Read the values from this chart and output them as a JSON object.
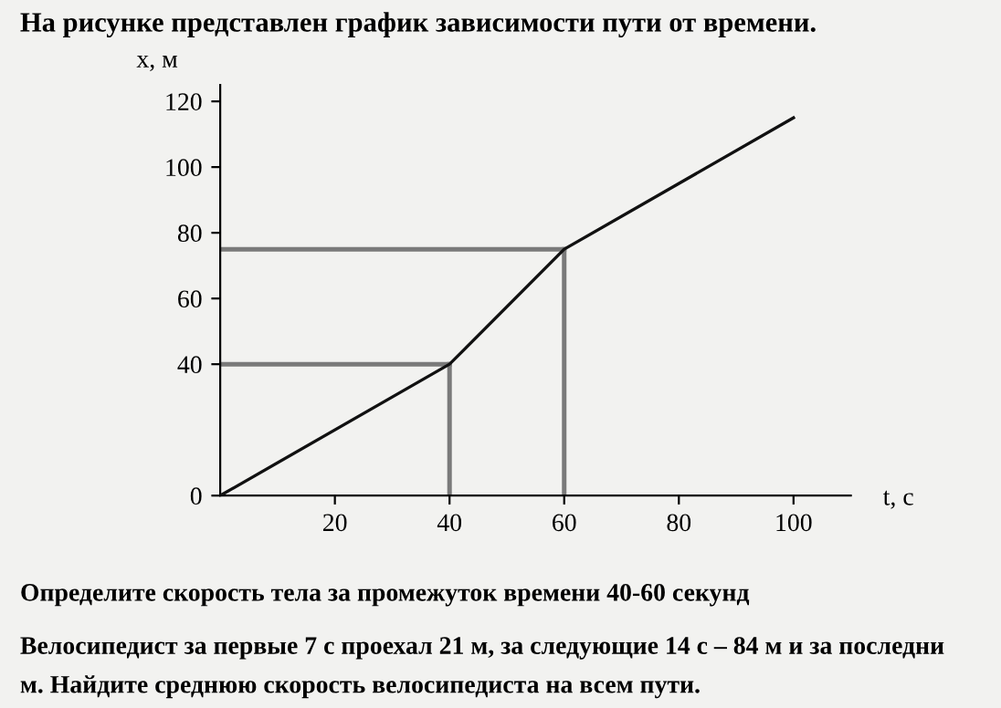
{
  "chart_data": {
    "type": "line",
    "title": "На рисунке представлен график зависимости пути от времени.",
    "xlabel": "t, с",
    "ylabel": "x, м",
    "series": [
      {
        "color": "#111111",
        "x": [
          0,
          40,
          60,
          100
        ],
        "values": [
          0,
          40,
          75,
          115
        ]
      },
      {
        "color": "#7a7a7a",
        "x": [
          0,
          40
        ],
        "values": [
          40,
          40
        ]
      },
      {
        "color": "#7a7a7a",
        "x": [
          40,
          40
        ],
        "values": [
          0,
          40
        ]
      },
      {
        "color": "#7a7a7a",
        "x": [
          0,
          60
        ],
        "values": [
          75,
          75
        ]
      },
      {
        "color": "#7a7a7a",
        "x": [
          60,
          60
        ],
        "values": [
          0,
          75
        ]
      }
    ],
    "xlim": [
      0,
      110
    ],
    "ylim": [
      0,
      125
    ],
    "xticks": [
      20,
      40,
      60,
      80,
      100
    ],
    "yticks": [
      0,
      40,
      60,
      80,
      100,
      120
    ],
    "grid": false,
    "marker": "none",
    "line_style": "solid",
    "annotations": [
      "Определите скорость тела за промежуток времени 40-60 секунд",
      "Велосипедист за первые 7 с проехал 21 м, за следующие 14 с – 84 м и за последни",
      "м. Найдите среднюю скорость велосипедиста на всем пути."
    ]
  }
}
